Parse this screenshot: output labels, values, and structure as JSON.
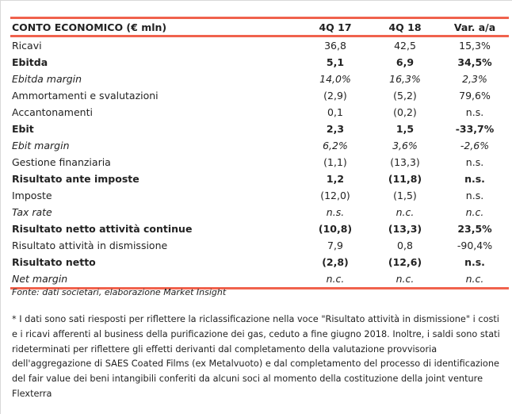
{
  "table": {
    "headers": [
      "CONTO ECONOMICO (€ mln)",
      "4Q 17",
      "4Q 18",
      "Var. a/a"
    ],
    "rows": [
      {
        "label": "Ricavi",
        "q17": "36,8",
        "q18": "42,5",
        "var": "15,3%",
        "style": ""
      },
      {
        "label": "Ebitda",
        "q17": "5,1",
        "q18": "6,9",
        "var": "34,5%",
        "style": "b"
      },
      {
        "label": "Ebitda margin",
        "q17": "14,0%",
        "q18": "16,3%",
        "var": "2,3%",
        "style": "i"
      },
      {
        "label": "Ammortamenti e svalutazioni",
        "q17": "(2,9)",
        "q18": "(5,2)",
        "var": "79,6%",
        "style": ""
      },
      {
        "label": "Accantonamenti",
        "q17": "0,1",
        "q18": "(0,2)",
        "var": "n.s.",
        "style": ""
      },
      {
        "label": "Ebit",
        "q17": "2,3",
        "q18": "1,5",
        "var": "-33,7%",
        "style": "b"
      },
      {
        "label": "Ebit margin",
        "q17": "6,2%",
        "q18": "3,6%",
        "var": "-2,6%",
        "style": "i"
      },
      {
        "label": "Gestione finanziaria",
        "q17": "(1,1)",
        "q18": "(13,3)",
        "var": "n.s.",
        "style": ""
      },
      {
        "label": "Risultato ante imposte",
        "q17": "1,2",
        "q18": "(11,8)",
        "var": "n.s.",
        "style": "b"
      },
      {
        "label": "Imposte",
        "q17": "(12,0)",
        "q18": "(1,5)",
        "var": "n.s.",
        "style": ""
      },
      {
        "label": "Tax rate",
        "q17": "n.s.",
        "q18": "n.c.",
        "var": "n.c.",
        "style": "i"
      },
      {
        "label": "Risultato netto attività continue",
        "q17": "(10,8)",
        "q18": "(13,3)",
        "var": "23,5%",
        "style": "b"
      },
      {
        "label": "Risultato attività in dismissione",
        "q17": "7,9",
        "q18": "0,8",
        "var": "-90,4%",
        "style": ""
      },
      {
        "label": "Risultato netto",
        "q17": "(2,8)",
        "q18": "(12,6)",
        "var": "n.s.",
        "style": "b"
      },
      {
        "label": "Net margin",
        "q17": "n.c.",
        "q18": "n.c.",
        "var": "n.c.",
        "style": "i"
      }
    ]
  },
  "source": "Fonte: dati societari, elaborazione Market Insight",
  "footnote": "* I dati sono sati riesposti per riflettere la riclassificazione nella voce \"Risultato attività in dismissione\" i costi e i ricavi afferenti al business della purificazione dei gas, ceduto a fine giugno 2018. Inoltre, i saldi sono stati rideterminati per  riflettere gli effetti derivanti dal completamento della valutazione provvisoria  dell'aggregazione di  SAES Coated Films (ex Metalvuoto) e dal completamento del processo di identificazione del fair value dei beni intangibili conferiti da alcuni soci al momento della costituzione della joint venture Flexterra",
  "colors": {
    "accent": "#f0624d"
  }
}
